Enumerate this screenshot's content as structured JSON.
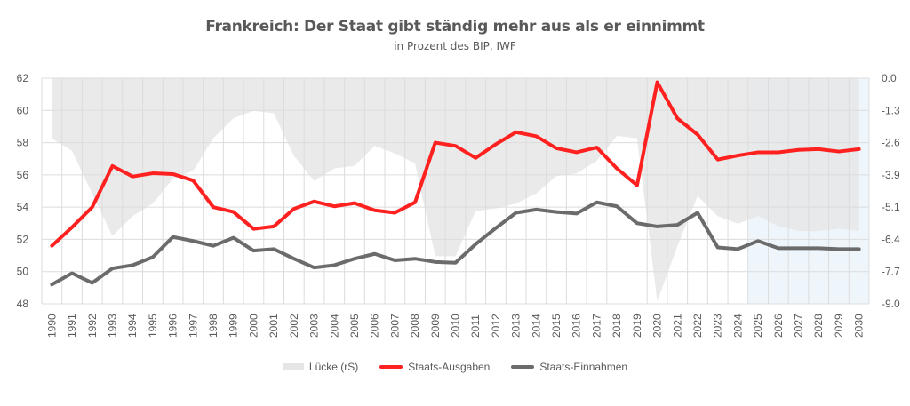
{
  "chart_data": {
    "type": "line",
    "title": "Frankreich: Der Staat gibt ständig mehr aus als er einnimmt",
    "subtitle": "in Prozent des BIP, IWF",
    "xlabel": "",
    "ylabel": "",
    "x": [
      1990,
      1991,
      1992,
      1993,
      1994,
      1995,
      1996,
      1997,
      1998,
      1999,
      2000,
      2001,
      2002,
      2003,
      2004,
      2005,
      2006,
      2007,
      2008,
      2009,
      2010,
      2011,
      2012,
      2013,
      2014,
      2015,
      2016,
      2017,
      2018,
      2019,
      2020,
      2021,
      2022,
      2023,
      2024,
      2025,
      2026,
      2027,
      2028,
      2029,
      2030
    ],
    "x_tick_labels": [
      "1990",
      "1991",
      "1992",
      "1993",
      "1994",
      "1995",
      "1996",
      "1997",
      "1998",
      "1999",
      "2000",
      "2001",
      "2002",
      "2003",
      "2004",
      "2005",
      "2006",
      "2007",
      "2008",
      "2009",
      "2010",
      "2011",
      "2012",
      "2013",
      "2014",
      "2015",
      "2016",
      "2017",
      "2018",
      "2019",
      "2020",
      "2021",
      "2022",
      "2023",
      "2024",
      "2025",
      "2026",
      "2027",
      "2028",
      "2029",
      "2030"
    ],
    "ylim": [
      48,
      62
    ],
    "y_ticks": [
      "48",
      "50",
      "52",
      "54",
      "56",
      "58",
      "60",
      "62"
    ],
    "y2lim": [
      -9.0,
      0.0
    ],
    "y2_ticks": [
      "0.0",
      "-1.3",
      "-2.6",
      "-3.9",
      "-5.1",
      "-6.4",
      "-7.7",
      "-9.0"
    ],
    "grid": true,
    "legend_position": "bottom",
    "forecast_shading": {
      "from": 2025,
      "to": 2030,
      "color": "#eef6fc"
    },
    "series": [
      {
        "name": "Lücke (rS)",
        "type": "area",
        "axis": "right",
        "color": "#e6e6e6",
        "values": [
          -2.4,
          -2.9,
          -4.6,
          -6.3,
          -5.5,
          -5.0,
          -4.0,
          -3.7,
          -2.4,
          -1.6,
          -1.3,
          -1.4,
          -3.1,
          -4.1,
          -3.6,
          -3.5,
          -2.7,
          -3.0,
          -3.4,
          -7.1,
          -7.1,
          -5.3,
          -5.2,
          -5.0,
          -4.6,
          -3.9,
          -3.8,
          -3.3,
          -2.3,
          -2.4,
          -8.9,
          -6.7,
          -4.7,
          -5.5,
          -5.8,
          -5.5,
          -5.9,
          -6.1,
          -6.1,
          -6.0,
          -6.1
        ]
      },
      {
        "name": "Staats-Ausgaben",
        "type": "line",
        "axis": "left",
        "color": "#ff2020",
        "values": [
          51.6,
          52.75,
          54.0,
          56.55,
          55.9,
          56.1,
          56.05,
          55.65,
          54.0,
          53.7,
          52.65,
          52.8,
          53.9,
          54.35,
          54.05,
          54.25,
          53.8,
          53.65,
          54.3,
          58.0,
          57.8,
          57.05,
          57.9,
          58.65,
          58.4,
          57.65,
          57.4,
          57.7,
          56.4,
          55.35,
          61.75,
          59.5,
          58.5,
          56.95,
          57.2,
          57.4,
          57.4,
          57.55,
          57.6,
          57.45,
          57.6
        ]
      },
      {
        "name": "Staats-Einnahmen",
        "type": "line",
        "axis": "left",
        "color": "#6b6b6b",
        "values": [
          49.2,
          49.9,
          49.3,
          50.2,
          50.4,
          50.9,
          52.15,
          51.9,
          51.6,
          52.1,
          51.3,
          51.4,
          50.8,
          50.25,
          50.4,
          50.8,
          51.1,
          50.7,
          50.8,
          50.6,
          50.55,
          51.7,
          52.7,
          53.65,
          53.85,
          53.7,
          53.6,
          54.3,
          54.05,
          53.0,
          52.8,
          52.9,
          53.65,
          51.5,
          51.4,
          51.9,
          51.45,
          51.45,
          51.45,
          51.4,
          51.4
        ]
      }
    ]
  },
  "legend": {
    "gap_label": "Lücke (rS)",
    "spending_label": "Staats-Ausgaben",
    "revenue_label": "Staats-Einnahmen"
  }
}
